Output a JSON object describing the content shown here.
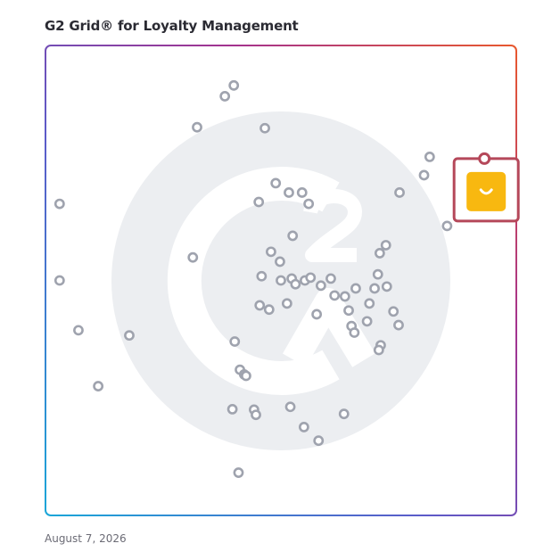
{
  "header": {
    "title": "G2 Grid® for Loyalty Management"
  },
  "footer": {
    "date": "August 7, 2026"
  },
  "colors": {
    "marker_stroke": "#9fa3ae",
    "highlight_frame": "#b5485a",
    "highlight_badge": "#f8b810",
    "watermark": "#eceef1",
    "frame_gradient": [
      "#1aa6d8",
      "#5b5bc9",
      "#a4328e",
      "#e8582e"
    ]
  },
  "chart_data": {
    "type": "scatter",
    "title": "G2 Grid® for Loyalty Management",
    "xlabel": "",
    "ylabel": "",
    "xlim": [
      0,
      100
    ],
    "ylim": [
      0,
      100
    ],
    "quadrant_split": {
      "x": 50,
      "y": 50
    },
    "grid": false,
    "points": [
      {
        "x": 40.0,
        "y": 91.5
      },
      {
        "x": 38.1,
        "y": 89.2
      },
      {
        "x": 32.2,
        "y": 82.6
      },
      {
        "x": 46.6,
        "y": 82.4
      },
      {
        "x": 3.0,
        "y": 66.3
      },
      {
        "x": 45.3,
        "y": 66.7
      },
      {
        "x": 48.9,
        "y": 70.7
      },
      {
        "x": 51.7,
        "y": 68.7
      },
      {
        "x": 54.5,
        "y": 68.7
      },
      {
        "x": 55.9,
        "y": 66.3
      },
      {
        "x": 52.5,
        "y": 59.5
      },
      {
        "x": 47.9,
        "y": 56.1
      },
      {
        "x": 49.8,
        "y": 54.0
      },
      {
        "x": 31.3,
        "y": 54.9
      },
      {
        "x": 3.0,
        "y": 50.0
      },
      {
        "x": 45.9,
        "y": 50.9
      },
      {
        "x": 50.0,
        "y": 50.0
      },
      {
        "x": 52.3,
        "y": 50.4
      },
      {
        "x": 55.1,
        "y": 50.0
      },
      {
        "x": 56.3,
        "y": 50.6
      },
      {
        "x": 53.1,
        "y": 49.2
      },
      {
        "x": 58.5,
        "y": 48.9
      },
      {
        "x": 60.6,
        "y": 50.4
      },
      {
        "x": 61.4,
        "y": 46.8
      },
      {
        "x": 65.9,
        "y": 48.3
      },
      {
        "x": 68.8,
        "y": 45.1
      },
      {
        "x": 69.9,
        "y": 48.3
      },
      {
        "x": 72.5,
        "y": 48.7
      },
      {
        "x": 51.3,
        "y": 45.1
      },
      {
        "x": 45.5,
        "y": 44.7
      },
      {
        "x": 47.5,
        "y": 43.8
      },
      {
        "x": 57.6,
        "y": 42.8
      },
      {
        "x": 63.6,
        "y": 46.6
      },
      {
        "x": 64.4,
        "y": 43.6
      },
      {
        "x": 65.0,
        "y": 40.3
      },
      {
        "x": 68.3,
        "y": 41.3
      },
      {
        "x": 65.6,
        "y": 38.9
      },
      {
        "x": 71.2,
        "y": 36.2
      },
      {
        "x": 70.8,
        "y": 35.2
      },
      {
        "x": 41.3,
        "y": 31.0
      },
      {
        "x": 42.2,
        "y": 30.0
      },
      {
        "x": 42.6,
        "y": 29.7
      },
      {
        "x": 40.2,
        "y": 37.0
      },
      {
        "x": 7.0,
        "y": 39.4
      },
      {
        "x": 17.8,
        "y": 38.3
      },
      {
        "x": 11.2,
        "y": 27.5
      },
      {
        "x": 39.7,
        "y": 22.6
      },
      {
        "x": 52.0,
        "y": 23.1
      },
      {
        "x": 63.4,
        "y": 21.6
      },
      {
        "x": 54.9,
        "y": 18.8
      },
      {
        "x": 44.3,
        "y": 22.5
      },
      {
        "x": 44.7,
        "y": 21.4
      },
      {
        "x": 58.0,
        "y": 15.9
      },
      {
        "x": 41.0,
        "y": 9.1
      },
      {
        "x": 75.2,
        "y": 68.7
      },
      {
        "x": 80.4,
        "y": 72.4
      },
      {
        "x": 81.6,
        "y": 76.3
      },
      {
        "x": 85.3,
        "y": 61.6
      },
      {
        "x": 72.3,
        "y": 57.5
      },
      {
        "x": 71.0,
        "y": 55.8
      },
      {
        "x": 70.6,
        "y": 51.3
      },
      {
        "x": 73.9,
        "y": 43.4
      },
      {
        "x": 75.0,
        "y": 40.5
      }
    ],
    "highlight": {
      "x": 93.6,
      "y": 68.9
    }
  }
}
